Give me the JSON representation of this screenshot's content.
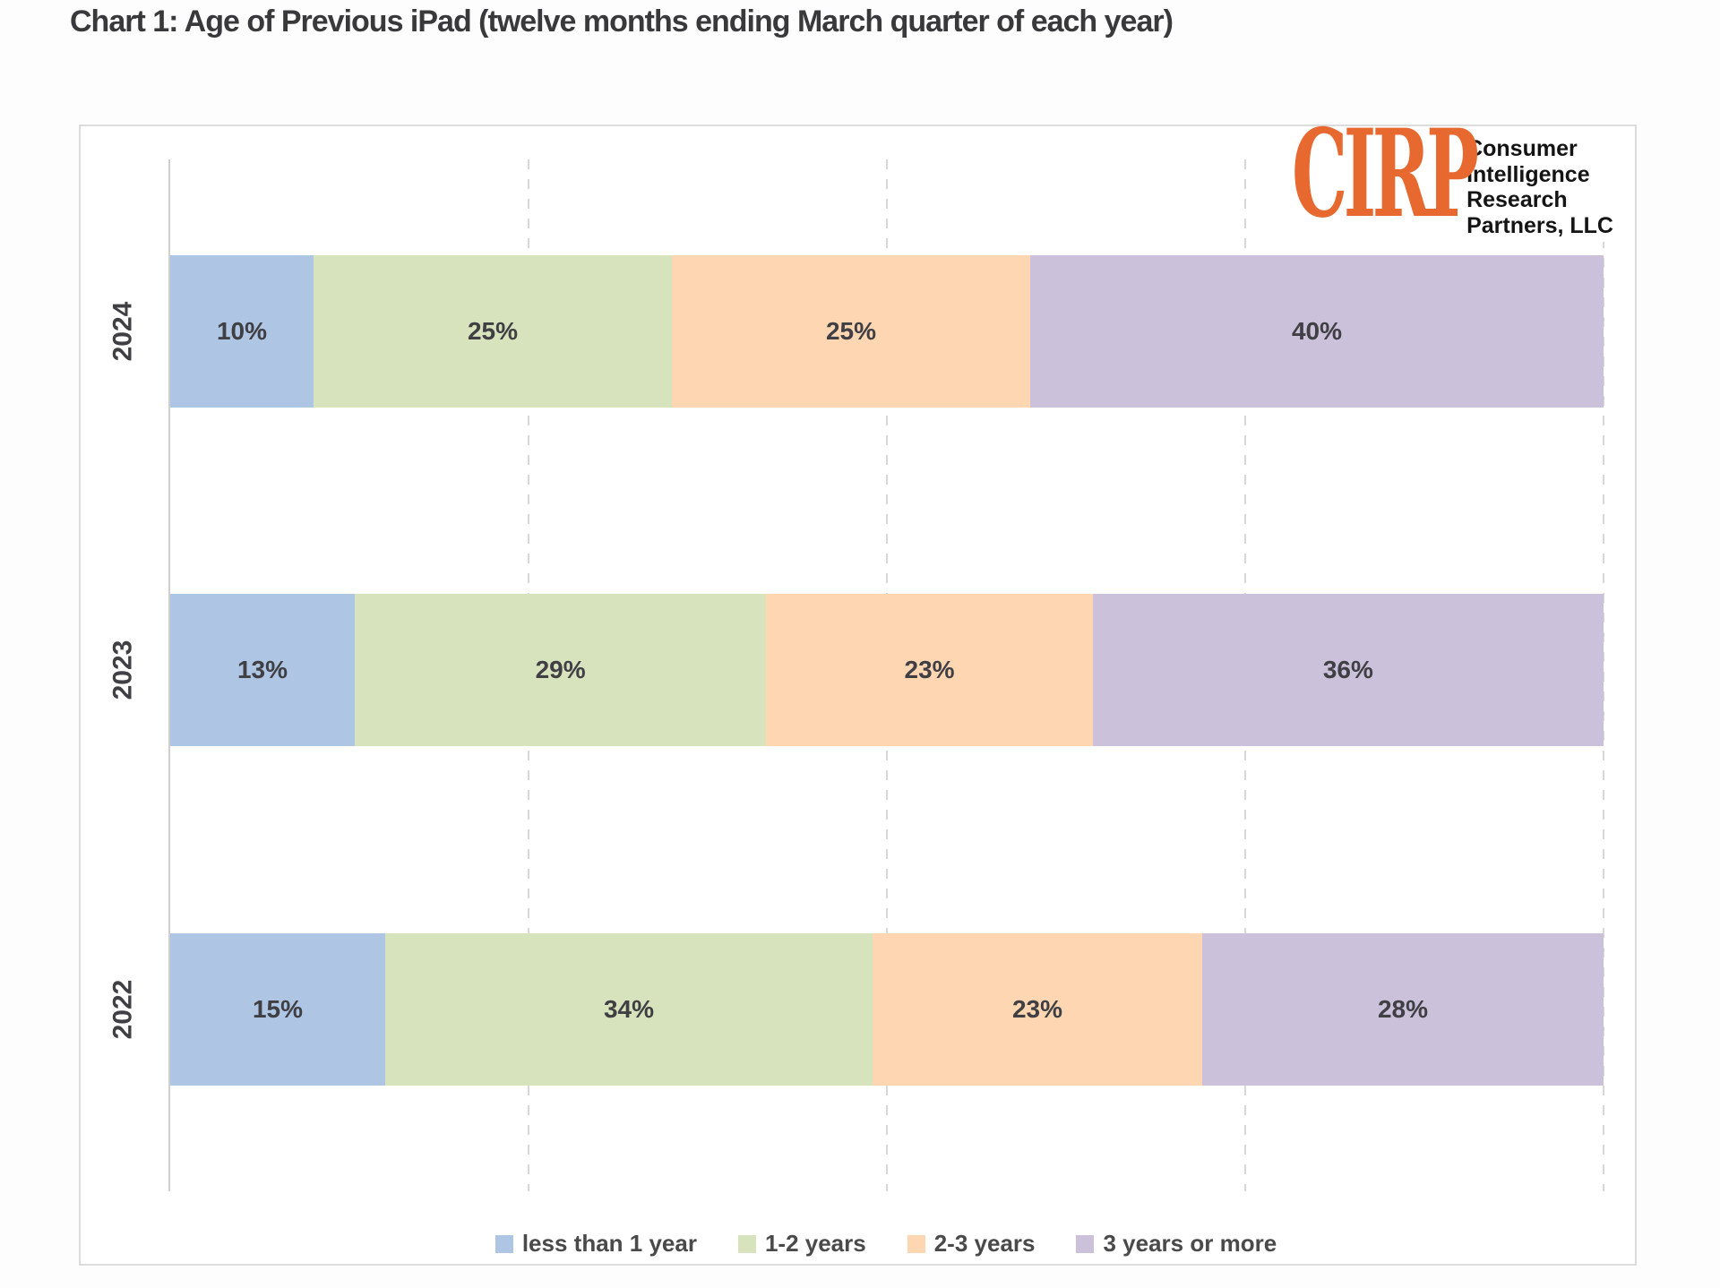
{
  "title": "Chart 1: Age of Previous iPad (twelve months ending March quarter of each year)",
  "logo": {
    "abbr": "CIRP",
    "color": "#e8692f",
    "lines": [
      "Consumer",
      "Intelligence",
      "Research",
      "Partners, LLC"
    ]
  },
  "chart_data": {
    "type": "bar",
    "orientation": "horizontal-stacked",
    "title": "Chart 1: Age of Previous iPad (twelve months ending March quarter of each year)",
    "categories": [
      "2024",
      "2023",
      "2022"
    ],
    "series": [
      {
        "name": "less than 1 year",
        "color": "#aec6e3",
        "values": [
          10,
          13,
          15
        ]
      },
      {
        "name": "1-2 years",
        "color": "#d6e3bd",
        "values": [
          25,
          29,
          34
        ]
      },
      {
        "name": "2-3 years",
        "color": "#fed6b2",
        "values": [
          25,
          23,
          23
        ]
      },
      {
        "name": "3 years or more",
        "color": "#cbc1da",
        "values": [
          40,
          36,
          28
        ]
      }
    ],
    "value_format": "percent",
    "value_labels_inside_bars": true,
    "xlim": [
      0,
      100
    ],
    "gridlines_percent": [
      25,
      50,
      75,
      100
    ],
    "gridline_style": "dashed",
    "legend_position": "bottom"
  }
}
